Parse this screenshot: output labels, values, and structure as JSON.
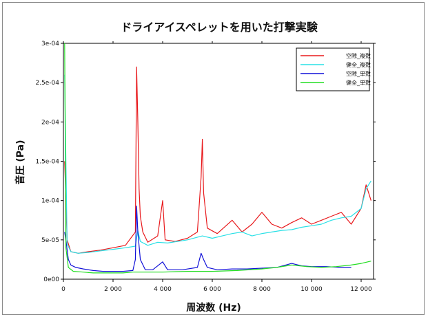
{
  "chart_data": {
    "type": "line",
    "title": "ドライアイスペレットを用いた打撃実験",
    "xlabel": "周波数 (Hz)",
    "ylabel": "音圧 (Pa)",
    "xlim": [
      0,
      12500
    ],
    "ylim": [
      0,
      0.0003
    ],
    "x_ticks": [
      0,
      2000,
      4000,
      6000,
      8000,
      10000,
      12000
    ],
    "x_tick_labels": [
      "0",
      "2 000",
      "4 000",
      "6 000",
      "8 000",
      "10 000",
      "12 000"
    ],
    "y_ticks": [
      0,
      5e-05,
      0.0001,
      0.00015,
      0.0002,
      0.00025,
      0.0003
    ],
    "y_tick_labels": [
      "0e00",
      "5e-05",
      "1e-04",
      "1.5e-04",
      "2e-04",
      "2.5e-04",
      "3e-04"
    ],
    "grid": false,
    "legend_position": "top-right",
    "series": [
      {
        "name": "空隙_複数",
        "color": "#e8191c",
        "x": [
          50,
          150,
          300,
          600,
          1000,
          1500,
          2000,
          2500,
          2900,
          2950,
          3000,
          3050,
          3100,
          3200,
          3400,
          3800,
          4000,
          4100,
          4500,
          5000,
          5400,
          5550,
          5600,
          5650,
          5800,
          6200,
          6800,
          7200,
          7600,
          8000,
          8400,
          8800,
          9200,
          9600,
          10000,
          10400,
          10800,
          11200,
          11600,
          12000,
          12200,
          12400
        ],
        "y": [
          0.00015,
          5e-05,
          3.5e-05,
          3.3e-05,
          3.5e-05,
          3.7e-05,
          4e-05,
          4.3e-05,
          6e-05,
          0.00027,
          0.0002,
          0.000115,
          8e-05,
          6e-05,
          4.7e-05,
          5.5e-05,
          0.0001,
          5e-05,
          4.8e-05,
          5.2e-05,
          6e-05,
          0.00013,
          0.000178,
          0.00011,
          6.5e-05,
          5.8e-05,
          7.5e-05,
          6e-05,
          7e-05,
          8.5e-05,
          7e-05,
          6.5e-05,
          7.2e-05,
          7.8e-05,
          7e-05,
          7.5e-05,
          8e-05,
          8.5e-05,
          7e-05,
          9e-05,
          0.00012,
          0.0001
        ]
      },
      {
        "name": "健全_複数",
        "color": "#29e0e6",
        "x": [
          50,
          150,
          300,
          600,
          1000,
          1500,
          2000,
          2500,
          2900,
          3000,
          3100,
          3400,
          3800,
          4200,
          4600,
          5000,
          5600,
          6000,
          6400,
          6800,
          7200,
          7600,
          8000,
          8400,
          8800,
          9200,
          9600,
          10000,
          10400,
          10800,
          11200,
          11600,
          12000,
          12200,
          12400
        ],
        "y": [
          0.00026,
          4.5e-05,
          3.5e-05,
          3.3e-05,
          3.4e-05,
          3.6e-05,
          3.8e-05,
          4e-05,
          4.2e-05,
          6.2e-05,
          4.8e-05,
          4.3e-05,
          4.7e-05,
          4.6e-05,
          4.8e-05,
          5e-05,
          5.5e-05,
          5.2e-05,
          5.5e-05,
          5.8e-05,
          6e-05,
          5.5e-05,
          5.8e-05,
          6e-05,
          6.2e-05,
          6.3e-05,
          6.6e-05,
          6.8e-05,
          7e-05,
          7.5e-05,
          7.8e-05,
          8e-05,
          9e-05,
          0.000115,
          0.000125
        ]
      },
      {
        "name": "空隙_単数",
        "color": "#1010d8",
        "x": [
          50,
          120,
          200,
          300,
          500,
          800,
          1200,
          1600,
          2000,
          2400,
          2800,
          2900,
          2950,
          3000,
          3100,
          3300,
          3600,
          4000,
          4200,
          4800,
          5400,
          5550,
          5650,
          5800,
          6200,
          6800,
          7400,
          8000,
          8600,
          9200,
          9600,
          10000,
          10600,
          11200,
          11600
        ],
        "y": [
          6e-05,
          4.5e-05,
          2.5e-05,
          1.8e-05,
          1.5e-05,
          1.3e-05,
          1.1e-05,
          1e-05,
          1e-05,
          1e-05,
          1.1e-05,
          2.5e-05,
          9.3e-05,
          6e-05,
          2.5e-05,
          1.2e-05,
          1.2e-05,
          2.2e-05,
          1.2e-05,
          1.2e-05,
          1.5e-05,
          3.3e-05,
          2.5e-05,
          1.5e-05,
          1.2e-05,
          1.3e-05,
          1.3e-05,
          1.4e-05,
          1.5e-05,
          2e-05,
          1.7e-05,
          1.6e-05,
          1.6e-05,
          1.5e-05,
          1.5e-05
        ]
      },
      {
        "name": "健全_単数",
        "color": "#22dd22",
        "x": [
          50,
          100,
          200,
          400,
          800,
          1200,
          1600,
          2000,
          2400,
          2800,
          3000,
          3200,
          4000,
          5000,
          6000,
          7000,
          8000,
          8600,
          9200,
          9800,
          10400,
          11000,
          11600,
          12000,
          12400
        ],
        "y": [
          0.0003,
          4e-05,
          1.5e-05,
          1e-05,
          9e-06,
          8e-06,
          8e-06,
          8e-06,
          8e-06,
          9e-06,
          9e-06,
          9e-06,
          9e-06,
          1e-05,
          1e-05,
          1.1e-05,
          1.3e-05,
          1.5e-05,
          1.8e-05,
          1.6e-05,
          1.5e-05,
          1.6e-05,
          1.8e-05,
          2e-05,
          2.3e-05
        ]
      }
    ]
  }
}
